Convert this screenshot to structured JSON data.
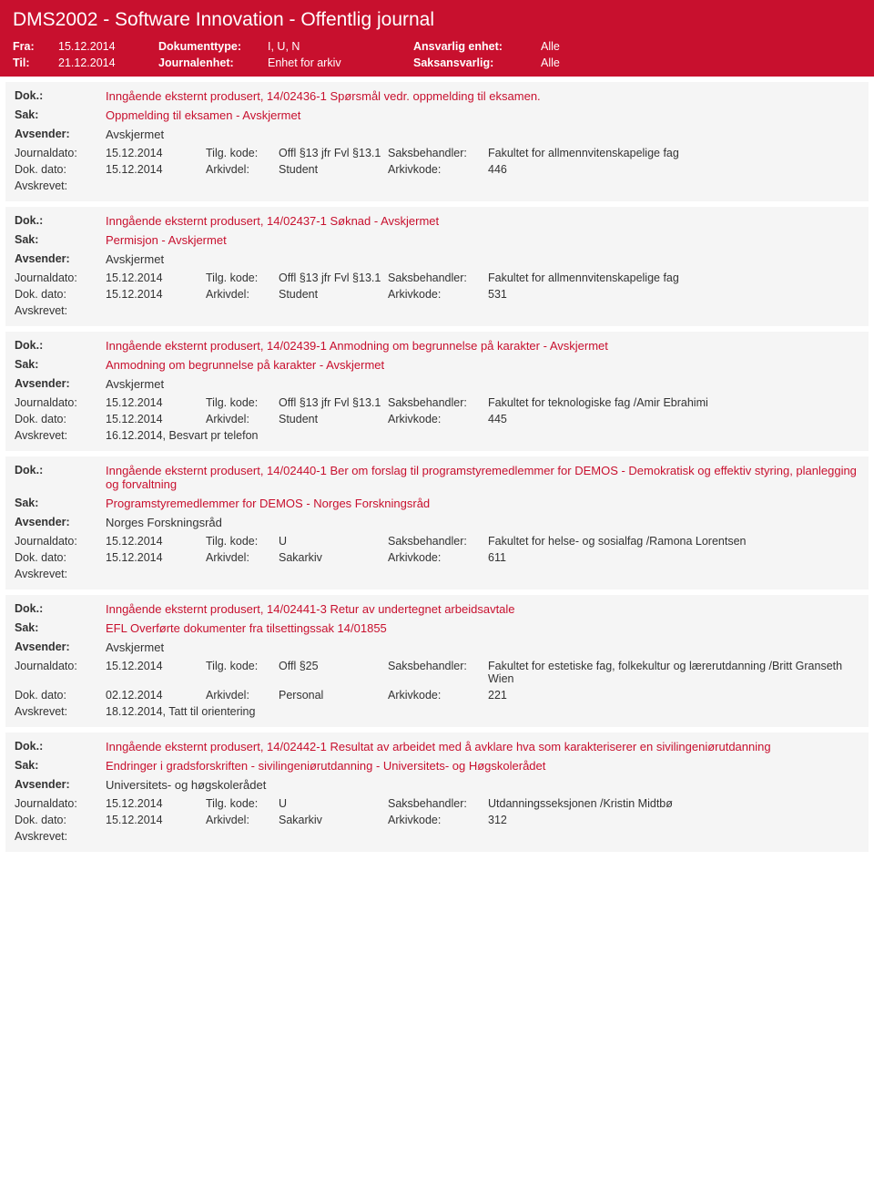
{
  "header": {
    "title": "DMS2002 - Software Innovation - Offentlig journal",
    "fra_label": "Fra:",
    "fra_value": "15.12.2014",
    "til_label": "Til:",
    "til_value": "21.12.2014",
    "doktype_label": "Dokumenttype:",
    "doktype_value": "I, U, N",
    "journalenhet_label": "Journalenhet:",
    "journalenhet_value": "Enhet for arkiv",
    "ansvarlig_label": "Ansvarlig enhet:",
    "ansvarlig_value": "Alle",
    "saksansvarlig_label": "Saksansvarlig:",
    "saksansvarlig_value": "Alle"
  },
  "labels": {
    "dok": "Dok.:",
    "sak": "Sak:",
    "avsender": "Avsender:",
    "journaldato": "Journaldato:",
    "tilgkode": "Tilg. kode:",
    "saksbehandler": "Saksbehandler:",
    "dokdato": "Dok. dato:",
    "arkivdel": "Arkivdel:",
    "arkivkode": "Arkivkode:",
    "avskrevet": "Avskrevet:"
  },
  "entries": [
    {
      "dok": "Inngående eksternt produsert, 14/02436-1 Spørsmål vedr. oppmelding til eksamen.",
      "sak": "Oppmelding til eksamen - Avskjermet",
      "avsender": "Avskjermet",
      "journaldato": "15.12.2014",
      "tilgkode": "Offl §13 jfr Fvl §13.1",
      "saksbehandler": "Fakultet for allmennvitenskapelige fag",
      "dokdato": "15.12.2014",
      "arkivdel": "Student",
      "arkivkode": "446",
      "avskrevet": ""
    },
    {
      "dok": "Inngående eksternt produsert, 14/02437-1 Søknad - Avskjermet",
      "sak": "Permisjon - Avskjermet",
      "avsender": "Avskjermet",
      "journaldato": "15.12.2014",
      "tilgkode": "Offl §13 jfr Fvl §13.1",
      "saksbehandler": "Fakultet for allmennvitenskapelige fag",
      "dokdato": "15.12.2014",
      "arkivdel": "Student",
      "arkivkode": "531",
      "avskrevet": ""
    },
    {
      "dok": "Inngående eksternt produsert, 14/02439-1 Anmodning om begrunnelse på karakter - Avskjermet",
      "sak": "Anmodning om begrunnelse på karakter - Avskjermet",
      "avsender": "Avskjermet",
      "journaldato": "15.12.2014",
      "tilgkode": "Offl §13 jfr Fvl §13.1",
      "saksbehandler": "Fakultet for teknologiske fag /Amir Ebrahimi",
      "dokdato": "15.12.2014",
      "arkivdel": "Student",
      "arkivkode": "445",
      "avskrevet": "16.12.2014, Besvart pr telefon"
    },
    {
      "dok": "Inngående eksternt produsert, 14/02440-1 Ber om forslag til programstyremedlemmer for DEMOS - Demokratisk og effektiv styring, planlegging og forvaltning",
      "sak": "Programstyremedlemmer for DEMOS - Norges Forskningsråd",
      "avsender": "Norges Forskningsråd",
      "journaldato": "15.12.2014",
      "tilgkode": "U",
      "saksbehandler": "Fakultet for helse- og sosialfag /Ramona Lorentsen",
      "dokdato": "15.12.2014",
      "arkivdel": "Sakarkiv",
      "arkivkode": "611",
      "avskrevet": ""
    },
    {
      "dok": "Inngående eksternt produsert, 14/02441-3 Retur av undertegnet arbeidsavtale",
      "sak": "EFL Overførte dokumenter fra tilsettingssak 14/01855",
      "avsender": "Avskjermet",
      "journaldato": "15.12.2014",
      "tilgkode": "Offl §25",
      "saksbehandler": "Fakultet for estetiske fag, folkekultur og lærerutdanning /Britt Granseth Wien",
      "dokdato": "02.12.2014",
      "arkivdel": "Personal",
      "arkivkode": "221",
      "avskrevet": "18.12.2014, Tatt til orientering"
    },
    {
      "dok": "Inngående eksternt produsert, 14/02442-1 Resultat av arbeidet med å avklare hva som karakteriserer en sivilingeniørutdanning",
      "sak": "Endringer i gradsforskriften - sivilingeniørutdanning - Universitets- og Høgskolerådet",
      "avsender": "Universitets- og høgskolerådet",
      "journaldato": "15.12.2014",
      "tilgkode": "U",
      "saksbehandler": "Utdanningsseksjonen /Kristin Midtbø",
      "dokdato": "15.12.2014",
      "arkivdel": "Sakarkiv",
      "arkivkode": "312",
      "avskrevet": ""
    }
  ]
}
